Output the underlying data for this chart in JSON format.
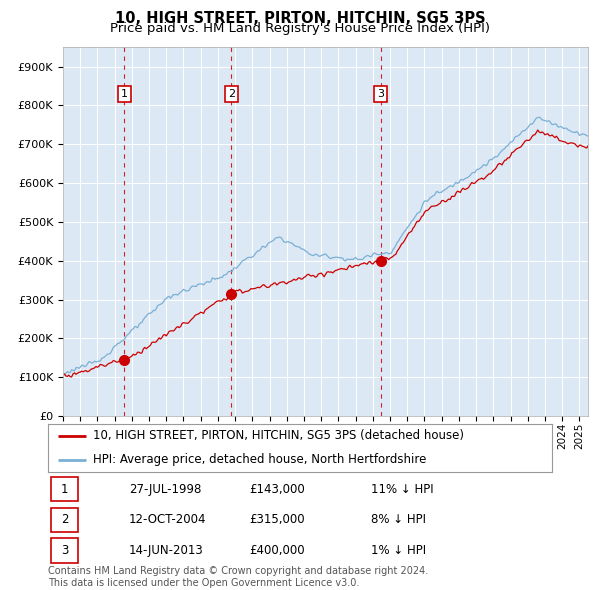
{
  "title1": "10, HIGH STREET, PIRTON, HITCHIN, SG5 3PS",
  "title2": "Price paid vs. HM Land Registry's House Price Index (HPI)",
  "ylabel_ticks": [
    "£0",
    "£100K",
    "£200K",
    "£300K",
    "£400K",
    "£500K",
    "£600K",
    "£700K",
    "£800K",
    "£900K"
  ],
  "ytick_vals": [
    0,
    100000,
    200000,
    300000,
    400000,
    500000,
    600000,
    700000,
    800000,
    900000
  ],
  "xlim_start": 1995.25,
  "xlim_end": 2025.5,
  "ylim": [
    0,
    950000
  ],
  "sale_dates": [
    1998.57,
    2004.78,
    2013.45
  ],
  "sale_prices": [
    143000,
    315000,
    400000
  ],
  "sale_labels": [
    "1",
    "2",
    "3"
  ],
  "property_line_color": "#cc0000",
  "hpi_line_color": "#7bafd4",
  "background_color": "#dce9f5",
  "grid_color": "#ffffff",
  "sale_marker_color": "#cc0000",
  "dashed_line_color": "#cc0000",
  "legend_items": [
    "10, HIGH STREET, PIRTON, HITCHIN, SG5 3PS (detached house)",
    "HPI: Average price, detached house, North Hertfordshire"
  ],
  "table_rows": [
    [
      "1",
      "27-JUL-1998",
      "£143,000",
      "11% ↓ HPI"
    ],
    [
      "2",
      "12-OCT-2004",
      "£315,000",
      "8% ↓ HPI"
    ],
    [
      "3",
      "14-JUN-2013",
      "£400,000",
      "1% ↓ HPI"
    ]
  ],
  "footer_text": "Contains HM Land Registry data © Crown copyright and database right 2024.\nThis data is licensed under the Open Government Licence v3.0.",
  "title_fontsize": 10.5,
  "subtitle_fontsize": 9.5,
  "tick_fontsize": 8,
  "legend_fontsize": 8.5,
  "table_fontsize": 8.5,
  "footer_fontsize": 7
}
